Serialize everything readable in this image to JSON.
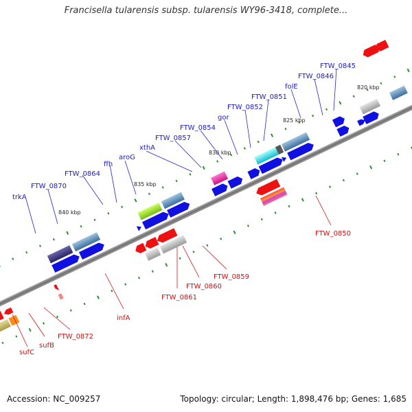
{
  "title": "Francisella tularensis subsp. tularensis WY96-3418, complete...",
  "footer": {
    "accession": "Accession: NC_009257",
    "summary": "Topology: circular; Length: 1,898,476 bp; Genes: 1,685"
  },
  "scale_labels": [
    "820 kbp",
    "825 kbp",
    "830 kbp",
    "835 kbp",
    "840 kbp"
  ],
  "genes_forward_strand": [
    "trkA",
    "FTW_0870",
    "FTW_0864",
    "ffh",
    "aroG",
    "xthA",
    "FTW_0857",
    "FTW_0854",
    "gor",
    "FTW_0852",
    "FTW_0851",
    "folE",
    "FTW_0846",
    "FTW_0845"
  ],
  "genes_reverse_strand": [
    "sufC",
    "sufB",
    "FTW_0872",
    "infA",
    "FTW_0861",
    "FTW_0860",
    "FTW_0859",
    "FTW_0850"
  ],
  "colors": {
    "forward_label": "#1a1acc",
    "reverse_label": "#cc1111",
    "cds_forward": "#1010e0",
    "cds_reverse": "#ee1111",
    "backbone": "#7a7a7a",
    "tick": "#2e8b2e"
  }
}
